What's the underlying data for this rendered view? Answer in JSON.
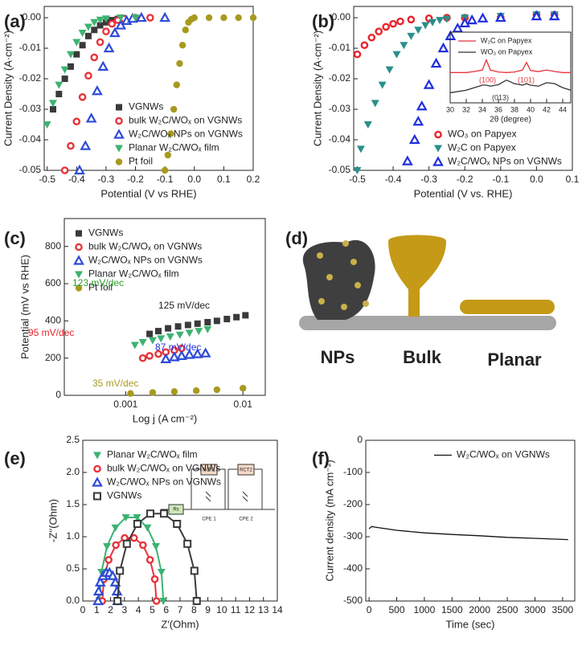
{
  "chart_data": [
    {
      "type": "scatter",
      "panel": "(a)",
      "xlabel": "Potential (V vs RHE)",
      "ylabel": "Current Density (A·cm⁻²)",
      "xlim": [
        -0.51,
        0.2
      ],
      "ylim": [
        -0.05,
        0.0037
      ],
      "xticks": [
        -0.5,
        -0.4,
        -0.3,
        -0.2,
        -0.1,
        {
          "value": 0,
          "label": "0.0"
        },
        0.1,
        0.2
      ],
      "yticks": [
        {
          "value": 0,
          "label": "0.00"
        },
        -0.01,
        -0.02,
        -0.03,
        -0.04,
        -0.05
      ],
      "legend": "lower right",
      "series": [
        {
          "name": "VGNWs",
          "color": "#3a3a3a",
          "marker": "square",
          "x": [
            -0.48,
            -0.46,
            -0.44,
            -0.42,
            -0.4,
            -0.38,
            -0.36,
            -0.34,
            -0.32,
            -0.3,
            -0.28,
            -0.26,
            -0.24,
            -0.2
          ],
          "values": [
            -0.03,
            -0.025,
            -0.02,
            -0.016,
            -0.012,
            -0.009,
            -0.006,
            -0.004,
            -0.0025,
            -0.0015,
            -0.0008,
            -0.0004,
            -0.0002,
            0
          ]
        },
        {
          "name": "bulk W₂C/WOₓ on VGNWs",
          "color": "#e8333a",
          "marker": "ring",
          "x": [
            -0.44,
            -0.42,
            -0.4,
            -0.38,
            -0.36,
            -0.34,
            -0.32,
            -0.3,
            -0.28,
            -0.26,
            -0.24,
            -0.2,
            -0.15
          ],
          "values": [
            -0.05,
            -0.042,
            -0.034,
            -0.026,
            -0.019,
            -0.013,
            -0.008,
            -0.0045,
            -0.002,
            -0.0008,
            -0.0003,
            0,
            0
          ]
        },
        {
          "name": "W₂C/WOₓ NPs on VGNWs",
          "color": "#2e4bd6",
          "marker": "tri-up-open",
          "x": [
            -0.39,
            -0.37,
            -0.35,
            -0.33,
            -0.31,
            -0.29,
            -0.27,
            -0.25,
            -0.23,
            -0.21,
            -0.18,
            -0.1
          ],
          "values": [
            -0.05,
            -0.042,
            -0.033,
            -0.024,
            -0.016,
            -0.01,
            -0.005,
            -0.0025,
            -0.001,
            -0.0003,
            0,
            0
          ]
        },
        {
          "name": "Planar W₂C/WOₓ film",
          "color": "#3cb371",
          "marker": "tri-down",
          "x": [
            -0.5,
            -0.48,
            -0.46,
            -0.44,
            -0.42,
            -0.4,
            -0.38,
            -0.36,
            -0.34,
            -0.32,
            -0.3,
            -0.25,
            -0.2
          ],
          "values": [
            -0.035,
            -0.028,
            -0.022,
            -0.017,
            -0.012,
            -0.008,
            -0.005,
            -0.003,
            -0.0015,
            -0.0007,
            -0.0003,
            0,
            0
          ]
        },
        {
          "name": "Pt foil",
          "color": "#a89a20",
          "marker": "dot",
          "x": [
            -0.1,
            -0.09,
            -0.08,
            -0.07,
            -0.06,
            -0.05,
            -0.04,
            -0.03,
            -0.02,
            -0.01,
            0,
            0.05,
            0.1,
            0.15,
            0.2
          ],
          "values": [
            -0.05,
            -0.045,
            -0.038,
            -0.03,
            -0.022,
            -0.015,
            -0.009,
            -0.004,
            -0.0015,
            -0.0005,
            0,
            0,
            0,
            0,
            0
          ]
        }
      ]
    },
    {
      "type": "scatter",
      "panel": "(b)",
      "xlabel": "Potential (V vs. RHE)",
      "ylabel": "Current Density (A·cm⁻²)",
      "xlim": [
        -0.51,
        0.1
      ],
      "ylim": [
        -0.05,
        0.0037
      ],
      "xticks": [
        -0.5,
        -0.4,
        -0.3,
        -0.2,
        -0.1,
        {
          "value": 0,
          "label": "0.0"
        },
        0.1
      ],
      "yticks": [
        {
          "value": 0,
          "label": "0.00"
        },
        -0.01,
        -0.02,
        -0.03,
        -0.04,
        -0.05
      ],
      "legend": "lower right",
      "series": [
        {
          "name": "WO₃ on Papyex",
          "color": "#e8222a",
          "marker": "ring",
          "x": [
            -0.5,
            -0.48,
            -0.46,
            -0.44,
            -0.42,
            -0.4,
            -0.38,
            -0.35,
            -0.3,
            -0.25,
            -0.2,
            -0.1,
            0,
            0.05
          ],
          "values": [
            -0.012,
            -0.009,
            -0.0065,
            -0.0045,
            -0.003,
            -0.002,
            -0.0012,
            -0.0006,
            -0.0002,
            0,
            0,
            0,
            0.001,
            0.001
          ]
        },
        {
          "name": "W₂C on Papyex",
          "color": "#2a8f8a",
          "marker": "tri-down",
          "x": [
            -0.5,
            -0.49,
            -0.47,
            -0.45,
            -0.43,
            -0.41,
            -0.39,
            -0.37,
            -0.35,
            -0.33,
            -0.31,
            -0.29,
            -0.27,
            -0.25,
            -0.2,
            -0.1,
            0,
            0.05
          ],
          "values": [
            -0.05,
            -0.043,
            -0.035,
            -0.028,
            -0.022,
            -0.017,
            -0.012,
            -0.009,
            -0.006,
            -0.004,
            -0.0025,
            -0.0015,
            -0.0008,
            -0.0004,
            0,
            0.0005,
            0.001,
            0.001
          ]
        },
        {
          "name": "W₂C/WOₓ NPs on VGNWs",
          "color": "#1f2ee0",
          "marker": "tri-up-open",
          "x": [
            -0.36,
            -0.34,
            -0.33,
            -0.32,
            -0.3,
            -0.28,
            -0.26,
            -0.24,
            -0.22,
            -0.2,
            -0.18,
            -0.15,
            -0.1,
            0,
            0.05
          ],
          "values": [
            -0.047,
            -0.04,
            -0.034,
            -0.029,
            -0.022,
            -0.015,
            -0.01,
            -0.006,
            -0.0035,
            -0.0018,
            -0.0008,
            -0.0002,
            0,
            0.0005,
            0.0005
          ]
        }
      ]
    },
    {
      "type": "line",
      "xlabel": "2θ (degree)",
      "xlim": [
        30,
        45
      ],
      "ylim": [
        0,
        14
      ],
      "xticks": [
        30,
        32,
        34,
        36,
        38,
        40,
        42,
        44
      ],
      "legend": "upper left",
      "x": [
        30,
        32,
        33,
        34,
        34.5,
        35,
        36,
        37,
        38,
        39,
        39.5,
        40,
        41,
        42,
        43,
        44,
        45
      ],
      "series": [
        {
          "name": "W₂C on Papyex",
          "color": "#e8333a",
          "values": [
            6,
            6,
            6.2,
            6.5,
            8.5,
            6.5,
            6.1,
            6,
            6.1,
            6.5,
            8,
            6.4,
            6.2,
            6.5,
            6.2,
            6,
            6
          ]
        },
        {
          "name": "WO₃ on Papyex",
          "color": "#333333",
          "values": [
            2,
            2.5,
            3,
            3.5,
            3.5,
            3.3,
            3.6,
            4.5,
            3.8,
            3.5,
            3.8,
            3.5,
            3.3,
            4,
            3.8,
            3,
            2.5
          ]
        }
      ],
      "annotations": [
        {
          "text": "(100)",
          "color": "#e8333a"
        },
        {
          "text": "(101)",
          "color": "#e8333a"
        },
        {
          "text": "(013)",
          "color": "#333333"
        }
      ]
    },
    {
      "type": "scatter",
      "panel": "(c)",
      "xlabel": "Log j (A cm⁻²)",
      "ylabel": "Potential (mV vs RHE)",
      "xlog": true,
      "xlim": [
        0.0003,
        0.0155
      ],
      "ylim": [
        0,
        950
      ],
      "xticks": [
        0.001,
        0.01
      ],
      "yticks": [
        0,
        200,
        400,
        600,
        800
      ],
      "legend": "upper left",
      "series": [
        {
          "name": "VGNWs",
          "color": "#3a3a3a",
          "marker": "square",
          "x": [
            0.0016,
            0.0019,
            0.0023,
            0.0028,
            0.0034,
            0.0041,
            0.005,
            0.006,
            0.0073,
            0.0088,
            0.0105
          ],
          "values": [
            330,
            345,
            360,
            370,
            378,
            385,
            393,
            400,
            410,
            420,
            430
          ]
        },
        {
          "name": "bulk W₂C/WOₓ on VGNWs",
          "color": "#e8333a",
          "marker": "ring",
          "x": [
            0.0014,
            0.0016,
            0.0019,
            0.0022,
            0.0026,
            0.003
          ],
          "values": [
            200,
            212,
            222,
            232,
            242,
            252
          ]
        },
        {
          "name": "W₂C/WOₓ NPs on VGNWs",
          "color": "#2e4bd6",
          "marker": "tri-up-open",
          "x": [
            0.0022,
            0.0026,
            0.003,
            0.0035,
            0.0041,
            0.0048
          ],
          "values": [
            195,
            205,
            212,
            218,
            222,
            226
          ]
        },
        {
          "name": "Planar W₂C/WOₓ film",
          "color": "#3cb371",
          "marker": "tri-down",
          "x": [
            0.0012,
            0.0014,
            0.0017,
            0.002,
            0.0024,
            0.0029,
            0.0035,
            0.0042,
            0.005
          ],
          "values": [
            270,
            285,
            295,
            305,
            315,
            325,
            335,
            345,
            355
          ]
        },
        {
          "name": "Pt foil",
          "color": "#a89a20",
          "marker": "dot",
          "x": [
            0.0011,
            0.0017,
            0.0026,
            0.004,
            0.006,
            0.01
          ],
          "values": [
            10,
            15,
            20,
            25,
            30,
            38
          ]
        }
      ],
      "annotations": [
        {
          "text": "125 mV/dec",
          "color": "#222222"
        },
        {
          "text": "123 mV/dec",
          "color": "#2e9e2e"
        },
        {
          "text": "95 mV/dec",
          "color": "#e8222a"
        },
        {
          "text": "87 mV/dec",
          "color": "#2233dd"
        },
        {
          "text": "35 mV/dec",
          "color": "#a89a20"
        }
      ]
    },
    {
      "type": "scatter",
      "panel": "(e)",
      "xlabel": "Z′(Ohm)",
      "ylabel": "-Z′′(Ohm)",
      "xlim": [
        0,
        14
      ],
      "ylim": [
        0,
        2.5
      ],
      "xticks": [
        0,
        1,
        2,
        3,
        4,
        5,
        6,
        7,
        8,
        9,
        10,
        11,
        12,
        13,
        14
      ],
      "yticks": [
        {
          "value": 0,
          "label": "0.0"
        },
        0.5,
        {
          "value": 1,
          "label": "1.0"
        },
        1.5,
        {
          "value": 2,
          "label": "2.0"
        },
        2.5
      ],
      "legend": "upper left",
      "series": [
        {
          "name": "Planar W₂C/WOₓ film",
          "color": "#3cb371",
          "marker": "tri-down",
          "line": true,
          "x": [
            1.2,
            1.34,
            1.74,
            2.35,
            3.1,
            3.9,
            4.65,
            5.26,
            5.66,
            5.8
          ],
          "values": [
            0,
            0.45,
            0.85,
            1.14,
            1.3,
            1.3,
            1.14,
            0.85,
            0.45,
            0
          ]
        },
        {
          "name": "bulk W₂C/WOₓ on VGNWs",
          "color": "#e8333a",
          "marker": "ring",
          "line": true,
          "x": [
            1.4,
            1.52,
            1.86,
            2.38,
            3.01,
            3.69,
            4.33,
            4.84,
            5.18,
            5.3
          ],
          "values": [
            0,
            0.34,
            0.64,
            0.87,
            0.98,
            0.98,
            0.87,
            0.64,
            0.34,
            0
          ]
        },
        {
          "name": "W₂C/WOₓ NPs on VGNWs",
          "color": "#2e4bd6",
          "marker": "tri-up-open",
          "line": true,
          "x": [
            1.1,
            1.14,
            1.26,
            1.45,
            1.68,
            1.92,
            2.15,
            2.34,
            2.46,
            2.5
          ],
          "values": [
            0,
            0.15,
            0.29,
            0.39,
            0.44,
            0.44,
            0.39,
            0.29,
            0.15,
            0
          ]
        },
        {
          "name": "VGNWs",
          "color": "#3a3a3a",
          "marker": "square-open",
          "line": true,
          "x": [
            2.5,
            2.67,
            3.17,
            3.93,
            4.86,
            5.84,
            6.78,
            7.53,
            8.03,
            8.2
          ],
          "values": [
            0,
            0.47,
            0.89,
            1.2,
            1.36,
            1.36,
            1.2,
            0.89,
            0.47,
            0
          ]
        }
      ]
    },
    {
      "type": "line",
      "panel": "(f)",
      "xlabel": "Time (sec)",
      "ylabel": "Current density (mA cm⁻²)",
      "xlim": [
        -60,
        3720
      ],
      "ylim": [
        -500,
        0
      ],
      "xticks": [
        0,
        500,
        1000,
        1500,
        2000,
        2500,
        3000,
        3500
      ],
      "yticks": [
        0,
        -100,
        -200,
        -300,
        -400,
        -500
      ],
      "legend": "upper right",
      "x": [
        0,
        50,
        100,
        500,
        1000,
        1500,
        2000,
        2500,
        3000,
        3600
      ],
      "series": [
        {
          "name": "W₂C/WOₓ on VGNWs",
          "color": "#111111",
          "values": [
            -275,
            -268,
            -270,
            -280,
            -288,
            -293,
            -297,
            -302,
            -305,
            -309
          ]
        }
      ]
    }
  ],
  "diagram": {
    "labels": [
      "NPs",
      "Bulk",
      "Planar"
    ]
  },
  "circuit": {
    "labels": [
      "Rs",
      "RCT1",
      "RCT2",
      "CPE 1",
      "CPE 2"
    ]
  }
}
